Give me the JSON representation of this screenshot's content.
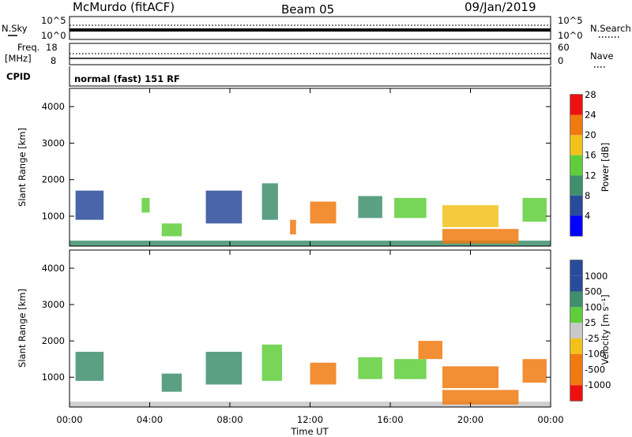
{
  "header": {
    "title": "McMurdo (fitACF)",
    "beam": "Beam 05",
    "date": "09/Jan/2019"
  },
  "noise_panel": {
    "left_label": "N.Sky",
    "right_label": "N.Search",
    "left_ticks": [
      "10^5",
      "10^0"
    ],
    "right_ticks": [
      "10^5",
      "10^0"
    ]
  },
  "freq_panel": {
    "left_label_line1": "Freq.",
    "left_label_line2": "[MHz]",
    "left_ticks": [
      "18",
      "8"
    ],
    "right_label": "Nave",
    "right_ticks": [
      "60",
      "0"
    ]
  },
  "cpid_panel": {
    "label": "CPID",
    "value": "normal (fast) 151 RF"
  },
  "x_axis": {
    "label": "Time UT",
    "ticks": [
      "00:00",
      "04:00",
      "08:00",
      "12:00",
      "16:00",
      "20:00",
      "00:00"
    ]
  },
  "colors": {
    "scale_blue": "#0000ff",
    "scale_navy": "#2a4a9a",
    "scale_teal": "#3f8f6f",
    "scale_green": "#5fce3a",
    "scale_yellow": "#f2c21a",
    "scale_orange": "#f07a10",
    "scale_red": "#ee1010",
    "scale_grey": "#c8c8c8"
  },
  "chart_data": [
    {
      "type": "heatmap",
      "title": "",
      "xlabel": "",
      "ylabel": "Slant Range [km]",
      "y_ticks": [
        "1000",
        "2000",
        "3000",
        "4000"
      ],
      "ylim": [
        180,
        4500
      ],
      "x_range_hours": [
        0,
        24
      ],
      "colorbar_label": "Power [dB]",
      "colorbar_ticks": [
        "4",
        "8",
        "12",
        "16",
        "20",
        "24",
        "28"
      ],
      "colorbar_range": [
        0,
        30
      ],
      "echo_regions": [
        {
          "t0": 0.0,
          "t1": 24.0,
          "r0": 180,
          "r1": 330,
          "value": 10
        },
        {
          "t0": 0.3,
          "t1": 1.7,
          "r0": 900,
          "r1": 1700,
          "value": 8
        },
        {
          "t0": 3.6,
          "t1": 4.0,
          "r0": 1100,
          "r1": 1500,
          "value": 14
        },
        {
          "t0": 4.6,
          "t1": 5.6,
          "r0": 450,
          "r1": 800,
          "value": 14
        },
        {
          "t0": 6.8,
          "t1": 8.6,
          "r0": 800,
          "r1": 1700,
          "value": 8
        },
        {
          "t0": 9.6,
          "t1": 10.4,
          "r0": 900,
          "r1": 1900,
          "value": 12
        },
        {
          "t0": 11.0,
          "t1": 11.3,
          "r0": 500,
          "r1": 900,
          "value": 22
        },
        {
          "t0": 12.0,
          "t1": 13.3,
          "r0": 800,
          "r1": 1400,
          "value": 22
        },
        {
          "t0": 14.4,
          "t1": 15.6,
          "r0": 950,
          "r1": 1550,
          "value": 12
        },
        {
          "t0": 16.2,
          "t1": 17.8,
          "r0": 950,
          "r1": 1500,
          "value": 14
        },
        {
          "t0": 18.6,
          "t1": 21.4,
          "r0": 700,
          "r1": 1300,
          "value": 20
        },
        {
          "t0": 18.6,
          "t1": 22.4,
          "r0": 250,
          "r1": 650,
          "value": 24
        },
        {
          "t0": 22.6,
          "t1": 23.8,
          "r0": 850,
          "r1": 1500,
          "value": 14
        }
      ]
    },
    {
      "type": "heatmap",
      "title": "",
      "xlabel": "Time UT",
      "ylabel": "Slant Range [km]",
      "y_ticks": [
        "1000",
        "2000",
        "3000",
        "4000"
      ],
      "ylim": [
        180,
        4500
      ],
      "x_range_hours": [
        0,
        24
      ],
      "colorbar_label": "Velocity [m s⁻¹]",
      "colorbar_ticks": [
        "1000",
        "500",
        "100",
        "25",
        "-25",
        "-100",
        "-500",
        "-1000"
      ],
      "colorbar_range": [
        -1200,
        1200
      ],
      "echo_regions": [
        {
          "t0": 0.0,
          "t1": 24.0,
          "r0": 180,
          "r1": 330,
          "value": 0
        },
        {
          "t0": 0.3,
          "t1": 1.7,
          "r0": 900,
          "r1": 1700,
          "value": 200
        },
        {
          "t0": 4.6,
          "t1": 5.6,
          "r0": 600,
          "r1": 1100,
          "value": 200
        },
        {
          "t0": 6.8,
          "t1": 8.6,
          "r0": 800,
          "r1": 1700,
          "value": 200
        },
        {
          "t0": 9.6,
          "t1": 10.6,
          "r0": 900,
          "r1": 1900,
          "value": 100
        },
        {
          "t0": 12.0,
          "t1": 13.3,
          "r0": 800,
          "r1": 1400,
          "value": -300
        },
        {
          "t0": 14.4,
          "t1": 15.6,
          "r0": 950,
          "r1": 1550,
          "value": 100
        },
        {
          "t0": 16.2,
          "t1": 17.8,
          "r0": 950,
          "r1": 1500,
          "value": 60
        },
        {
          "t0": 17.4,
          "t1": 18.6,
          "r0": 1500,
          "r1": 2000,
          "value": -200
        },
        {
          "t0": 18.6,
          "t1": 21.4,
          "r0": 700,
          "r1": 1300,
          "value": -300
        },
        {
          "t0": 18.6,
          "t1": 22.4,
          "r0": 250,
          "r1": 650,
          "value": -250
        },
        {
          "t0": 22.6,
          "t1": 23.8,
          "r0": 850,
          "r1": 1500,
          "value": -200
        }
      ]
    }
  ]
}
